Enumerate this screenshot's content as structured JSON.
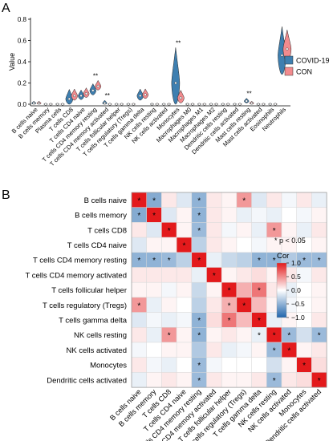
{
  "panel_labels": {
    "a": "A",
    "b": "B"
  },
  "significance_note": "* p < 0.05",
  "colors": {
    "covid": "#3e7fb0",
    "con": "#f28b8e",
    "corr_neg": "#2166ac",
    "corr_mid": "#ffffff",
    "corr_pos": "#e31a1c"
  },
  "chart_data": [
    {
      "type": "violin",
      "ylabel": "Value",
      "ylim": [
        0,
        0.8
      ],
      "yticks": [
        0.0,
        0.2,
        0.4,
        0.6,
        0.8
      ],
      "ytick_labels": [
        "0.0",
        "0.2",
        "0.4",
        "0.6",
        "0.8"
      ],
      "legend_position": "right",
      "series": [
        {
          "name": "COVID-19",
          "color": "#3e7fb0"
        },
        {
          "name": "CON",
          "color": "#f28b8e"
        }
      ],
      "categories": [
        "B cells naive",
        "B cells memory",
        "Plasma cells",
        "T cells CD8",
        "T cells CD4 naive",
        "T cells CD4 memory resting",
        "T cells CD4 memory activated",
        "T cells follicular helper",
        "T cells regulatory (Tregs)",
        "T cells gamma delta",
        "NK cells resting",
        "NK cells activated",
        "Monocytes",
        "Macrophages M0",
        "Macrophages M1",
        "Macrophages M2",
        "Dendritic cells resting",
        "Dendritic cells activated",
        "Mast cells resting",
        "Mast cells activated",
        "Eosinophils",
        "Neutrophils"
      ],
      "medians": {
        "covid": [
          0.01,
          0.0,
          0.0,
          0.05,
          0.08,
          0.13,
          0.01,
          0.0,
          0.0,
          0.08,
          0.0,
          0.0,
          0.2,
          0.0,
          0.0,
          0.0,
          0.0,
          0.0,
          0.03,
          0.0,
          0.0,
          0.46
        ],
        "con": [
          0.01,
          0.0,
          0.0,
          0.08,
          0.1,
          0.17,
          0.0,
          0.0,
          0.0,
          0.09,
          0.0,
          0.0,
          0.06,
          0.0,
          0.0,
          0.0,
          0.0,
          0.0,
          0.01,
          0.0,
          0.0,
          0.52
        ]
      },
      "spread": {
        "covid": [
          0.02,
          0.01,
          0.01,
          0.1,
          0.06,
          0.07,
          0.03,
          0.01,
          0.01,
          0.07,
          0.01,
          0.01,
          0.37,
          0.01,
          0.01,
          0.01,
          0.01,
          0.01,
          0.03,
          0.01,
          0.01,
          0.3
        ],
        "con": [
          0.02,
          0.01,
          0.01,
          0.07,
          0.06,
          0.06,
          0.01,
          0.01,
          0.01,
          0.06,
          0.01,
          0.01,
          0.08,
          0.01,
          0.01,
          0.01,
          0.01,
          0.01,
          0.02,
          0.01,
          0.01,
          0.2
        ]
      },
      "significance": [
        {
          "category": "T cells CD4 memory resting",
          "label": "**"
        },
        {
          "category": "T cells CD4 memory activated",
          "label": "**"
        },
        {
          "category": "Monocytes",
          "label": "**"
        },
        {
          "category": "Mast cells resting",
          "label": "**"
        }
      ]
    },
    {
      "type": "heatmap",
      "legend_title": "Cor",
      "legend_ticks": [
        1.0,
        0.5,
        0.0,
        -0.5,
        -1.0
      ],
      "legend_tick_labels": [
        "1.0",
        "0.5",
        "0.0",
        "−0.5",
        "−1.0"
      ],
      "legend_position": "right",
      "labels": [
        "B cells naive",
        "B cells memory",
        "T cells CD8",
        "T cells CD4 naive",
        "T cells CD4 memory resting",
        "T cells CD4 memory activated",
        "T cells follicular helper",
        "T cells regulatory (Tregs)",
        "T cells gamma delta",
        "NK cells resting",
        "NK cells activated",
        "Monocytes",
        "Dendritic cells activated"
      ],
      "matrix": [
        [
          1.0,
          -0.55,
          0.1,
          -0.15,
          -0.5,
          0.1,
          0.05,
          0.45,
          -0.15,
          0.1,
          -0.05,
          0.1,
          -0.1
        ],
        [
          -0.55,
          1.0,
          -0.15,
          0.05,
          -0.5,
          0.1,
          0.05,
          -0.1,
          -0.05,
          -0.1,
          0.0,
          -0.05,
          0.05
        ],
        [
          0.1,
          -0.15,
          1.0,
          0.05,
          -0.45,
          0.1,
          -0.05,
          0.05,
          -0.1,
          0.45,
          0.05,
          -0.1,
          0.1
        ],
        [
          -0.15,
          0.05,
          0.05,
          1.0,
          -0.3,
          0.1,
          0.05,
          0.0,
          -0.05,
          0.05,
          0.05,
          0.0,
          0.05
        ],
        [
          -0.5,
          -0.5,
          -0.45,
          -0.3,
          1.0,
          -0.1,
          -0.25,
          -0.3,
          -0.5,
          -0.5,
          -0.35,
          -0.45,
          -0.45
        ],
        [
          0.1,
          0.1,
          0.1,
          0.1,
          -0.1,
          1.0,
          0.05,
          0.1,
          0.15,
          0.05,
          0.1,
          -0.05,
          0.1
        ],
        [
          0.05,
          0.05,
          -0.05,
          0.05,
          -0.25,
          0.05,
          1.0,
          0.35,
          0.6,
          0.1,
          -0.1,
          0.0,
          0.05
        ],
        [
          0.45,
          -0.1,
          0.05,
          0.0,
          -0.3,
          0.1,
          0.35,
          1.0,
          0.3,
          0.05,
          -0.05,
          0.0,
          0.05
        ],
        [
          -0.15,
          -0.05,
          -0.1,
          -0.05,
          -0.5,
          0.15,
          0.6,
          0.3,
          1.0,
          -0.1,
          0.05,
          0.0,
          0.1
        ],
        [
          0.1,
          -0.1,
          0.45,
          0.05,
          -0.5,
          0.05,
          0.1,
          0.05,
          -0.1,
          1.0,
          -0.45,
          -0.2,
          -0.45
        ],
        [
          -0.05,
          0.0,
          0.05,
          0.05,
          -0.35,
          0.1,
          -0.1,
          -0.05,
          0.05,
          -0.45,
          1.0,
          0.05,
          0.1
        ],
        [
          0.1,
          -0.05,
          -0.1,
          0.0,
          -0.45,
          -0.05,
          0.0,
          0.0,
          0.0,
          -0.2,
          0.05,
          1.0,
          0.15
        ],
        [
          -0.1,
          0.05,
          0.1,
          0.05,
          -0.45,
          0.1,
          0.05,
          0.05,
          0.1,
          -0.45,
          0.1,
          0.15,
          1.0
        ]
      ],
      "significant_cells": [
        [
          0,
          0
        ],
        [
          0,
          1
        ],
        [
          0,
          4
        ],
        [
          0,
          7
        ],
        [
          1,
          0
        ],
        [
          1,
          1
        ],
        [
          1,
          4
        ],
        [
          2,
          2
        ],
        [
          2,
          4
        ],
        [
          2,
          9
        ],
        [
          3,
          3
        ],
        [
          4,
          0
        ],
        [
          4,
          1
        ],
        [
          4,
          2
        ],
        [
          4,
          4
        ],
        [
          4,
          8
        ],
        [
          4,
          9
        ],
        [
          4,
          11
        ],
        [
          4,
          12
        ],
        [
          5,
          5
        ],
        [
          6,
          6
        ],
        [
          6,
          8
        ],
        [
          7,
          0
        ],
        [
          7,
          6
        ],
        [
          7,
          7
        ],
        [
          8,
          4
        ],
        [
          8,
          6
        ],
        [
          8,
          8
        ],
        [
          9,
          2
        ],
        [
          9,
          4
        ],
        [
          9,
          8
        ],
        [
          9,
          9
        ],
        [
          9,
          10
        ],
        [
          9,
          12
        ],
        [
          10,
          9
        ],
        [
          10,
          10
        ],
        [
          11,
          4
        ],
        [
          11,
          11
        ],
        [
          12,
          4
        ],
        [
          12,
          9
        ],
        [
          12,
          12
        ]
      ]
    }
  ]
}
